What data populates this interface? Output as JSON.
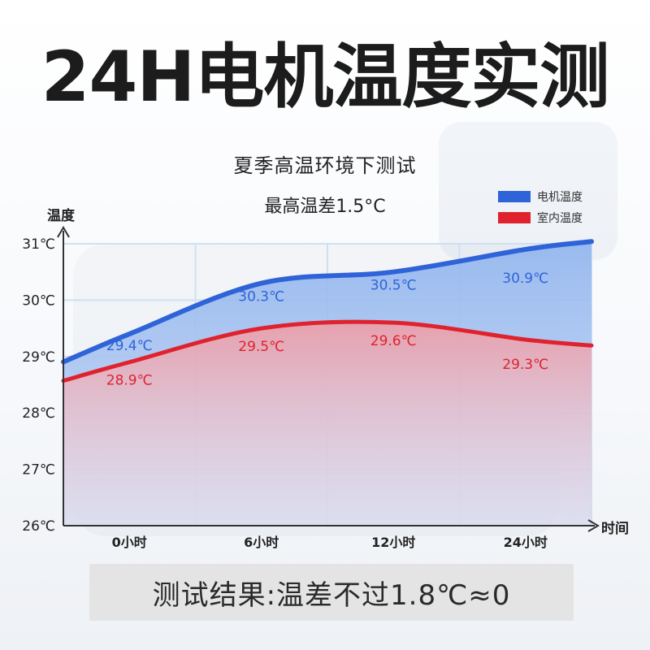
{
  "header": {
    "title": "24H电机温度实测",
    "subtitle": "夏季高温环境下测试",
    "note": "最高温差1.5°C"
  },
  "result": {
    "text": "测试结果:温差不过1.8℃≈0"
  },
  "colors": {
    "motor": "#2f63d8",
    "indoor": "#e0222e",
    "grid": "#cfe0f2",
    "axis": "#333333"
  },
  "chart_data": {
    "type": "area",
    "xlabel": "时间",
    "ylabel": "温度",
    "categories": [
      "0小时",
      "6小时",
      "12小时",
      "24小时"
    ],
    "y_ticks": [
      "26℃",
      "27℃",
      "28℃",
      "29℃",
      "30℃",
      "31℃"
    ],
    "ylim": [
      26,
      31
    ],
    "grid": true,
    "legend_position": "top-right",
    "series": [
      {
        "name": "电机温度",
        "color": "#2f63d8",
        "values": [
          29.4,
          30.3,
          30.5,
          30.9
        ],
        "labels": [
          "29.4℃",
          "30.3℃",
          "30.5℃",
          "30.9℃"
        ]
      },
      {
        "name": "室内温度",
        "color": "#e0222e",
        "values": [
          28.9,
          29.5,
          29.6,
          29.3
        ],
        "labels": [
          "28.9℃",
          "29.5℃",
          "29.6℃",
          "29.3℃"
        ]
      }
    ]
  }
}
